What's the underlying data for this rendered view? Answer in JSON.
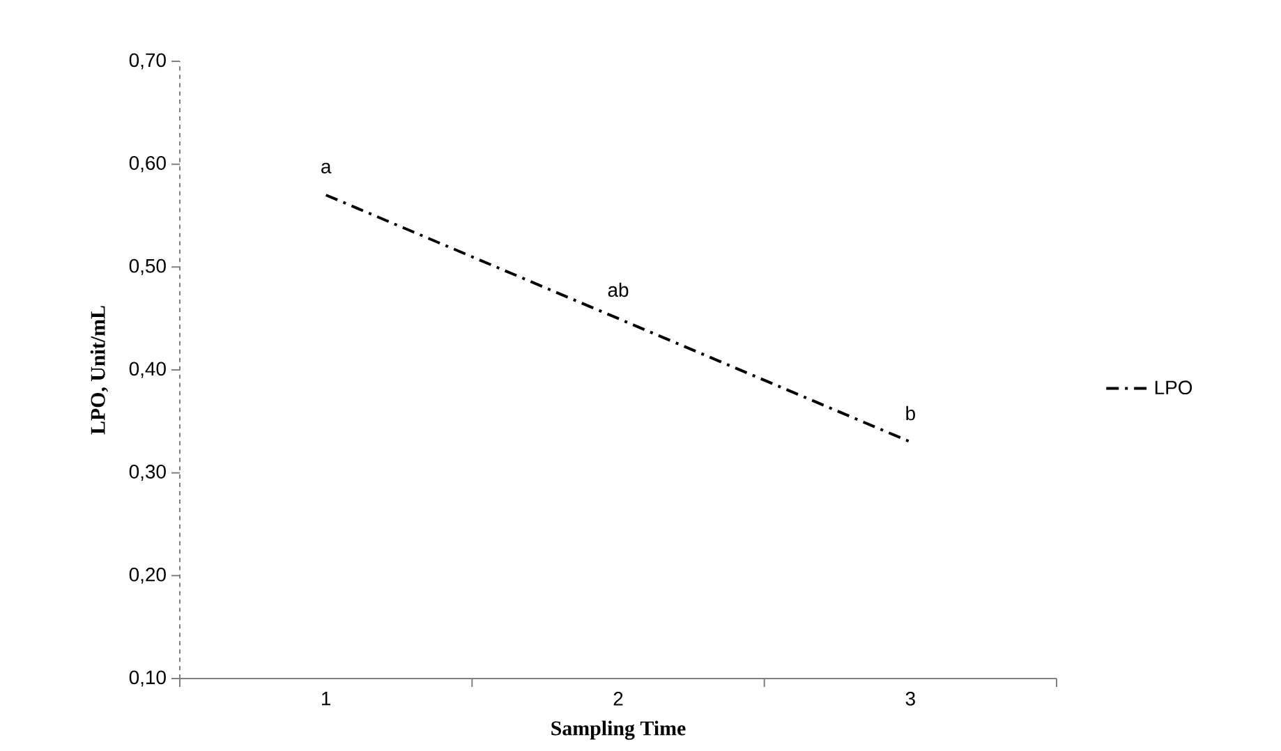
{
  "chart_data": {
    "type": "line",
    "xlabel": "Sampling Time",
    "ylabel": "LPO, Unit/mL",
    "categories": [
      "1",
      "2",
      "3"
    ],
    "series": [
      {
        "name": "LPO",
        "color": "#000000",
        "values": [
          0.57,
          0.45,
          0.33
        ]
      }
    ],
    "ylim": [
      0.1,
      0.7
    ],
    "yticks": [
      {
        "value": 0.1,
        "label": "0,10"
      },
      {
        "value": 0.2,
        "label": "0,20"
      },
      {
        "value": 0.3,
        "label": "0,30"
      },
      {
        "value": 0.4,
        "label": "0,40"
      },
      {
        "value": 0.5,
        "label": "0,50"
      },
      {
        "value": 0.6,
        "label": "0,60"
      },
      {
        "value": 0.7,
        "label": "0,70"
      }
    ],
    "annotations": [
      {
        "text": "a",
        "x": "1",
        "y": 0.57
      },
      {
        "text": "ab",
        "x": "2",
        "y": 0.45
      },
      {
        "text": "b",
        "x": "3",
        "y": 0.33
      }
    ],
    "grid": false,
    "legend": "right",
    "marker": "none",
    "line_style": "dashed"
  }
}
